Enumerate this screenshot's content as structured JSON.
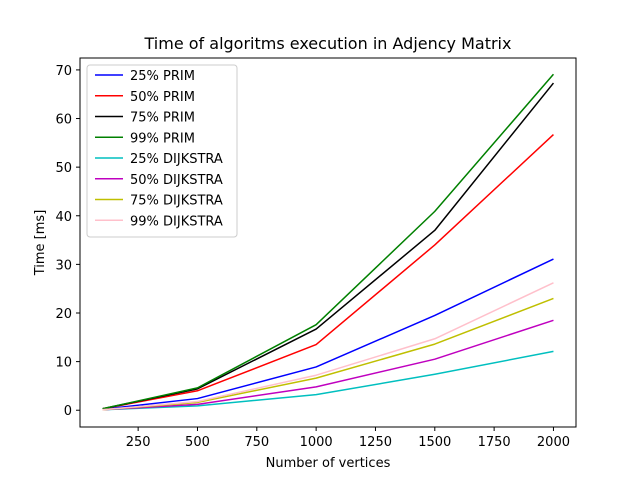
{
  "chart_data": {
    "type": "line",
    "title": "Time of algoritms execution in Adjency Matrix",
    "xlabel": "Number of vertices",
    "ylabel": "Time [ms]",
    "xlim": [
      5,
      2095
    ],
    "ylim": [
      -3.45,
      72.45
    ],
    "xticks": [
      250,
      500,
      750,
      1000,
      1250,
      1500,
      1750,
      2000
    ],
    "yticks": [
      0,
      10,
      20,
      30,
      40,
      50,
      60,
      70
    ],
    "x": [
      100,
      500,
      1000,
      1500,
      2000
    ],
    "legend_position": "upper-left",
    "grid": false,
    "series": [
      {
        "name": "25% PRIM",
        "color": "#0000ff",
        "values": [
          0.2,
          2.4,
          8.9,
          19.5,
          31.1
        ]
      },
      {
        "name": "50% PRIM",
        "color": "#ff0000",
        "values": [
          0.3,
          4.0,
          13.5,
          34.0,
          56.7
        ]
      },
      {
        "name": "75% PRIM",
        "color": "#000000",
        "values": [
          0.3,
          4.4,
          16.7,
          37.0,
          67.3
        ]
      },
      {
        "name": "99% PRIM",
        "color": "#008000",
        "values": [
          0.3,
          4.6,
          17.6,
          40.9,
          69.1
        ]
      },
      {
        "name": "25% DIJKSTRA",
        "color": "#00bfbf",
        "values": [
          0.1,
          0.9,
          3.2,
          7.4,
          12.1
        ]
      },
      {
        "name": "50% DIJKSTRA",
        "color": "#bf00bf",
        "values": [
          0.1,
          1.2,
          4.8,
          10.5,
          18.5
        ]
      },
      {
        "name": "75% DIJKSTRA",
        "color": "#bfbf00",
        "values": [
          0.1,
          1.6,
          6.6,
          13.6,
          23.0
        ]
      },
      {
        "name": "99% DIJKSTRA",
        "color": "#ffc0cb",
        "values": [
          0.1,
          1.8,
          7.2,
          14.7,
          26.2
        ]
      }
    ]
  }
}
